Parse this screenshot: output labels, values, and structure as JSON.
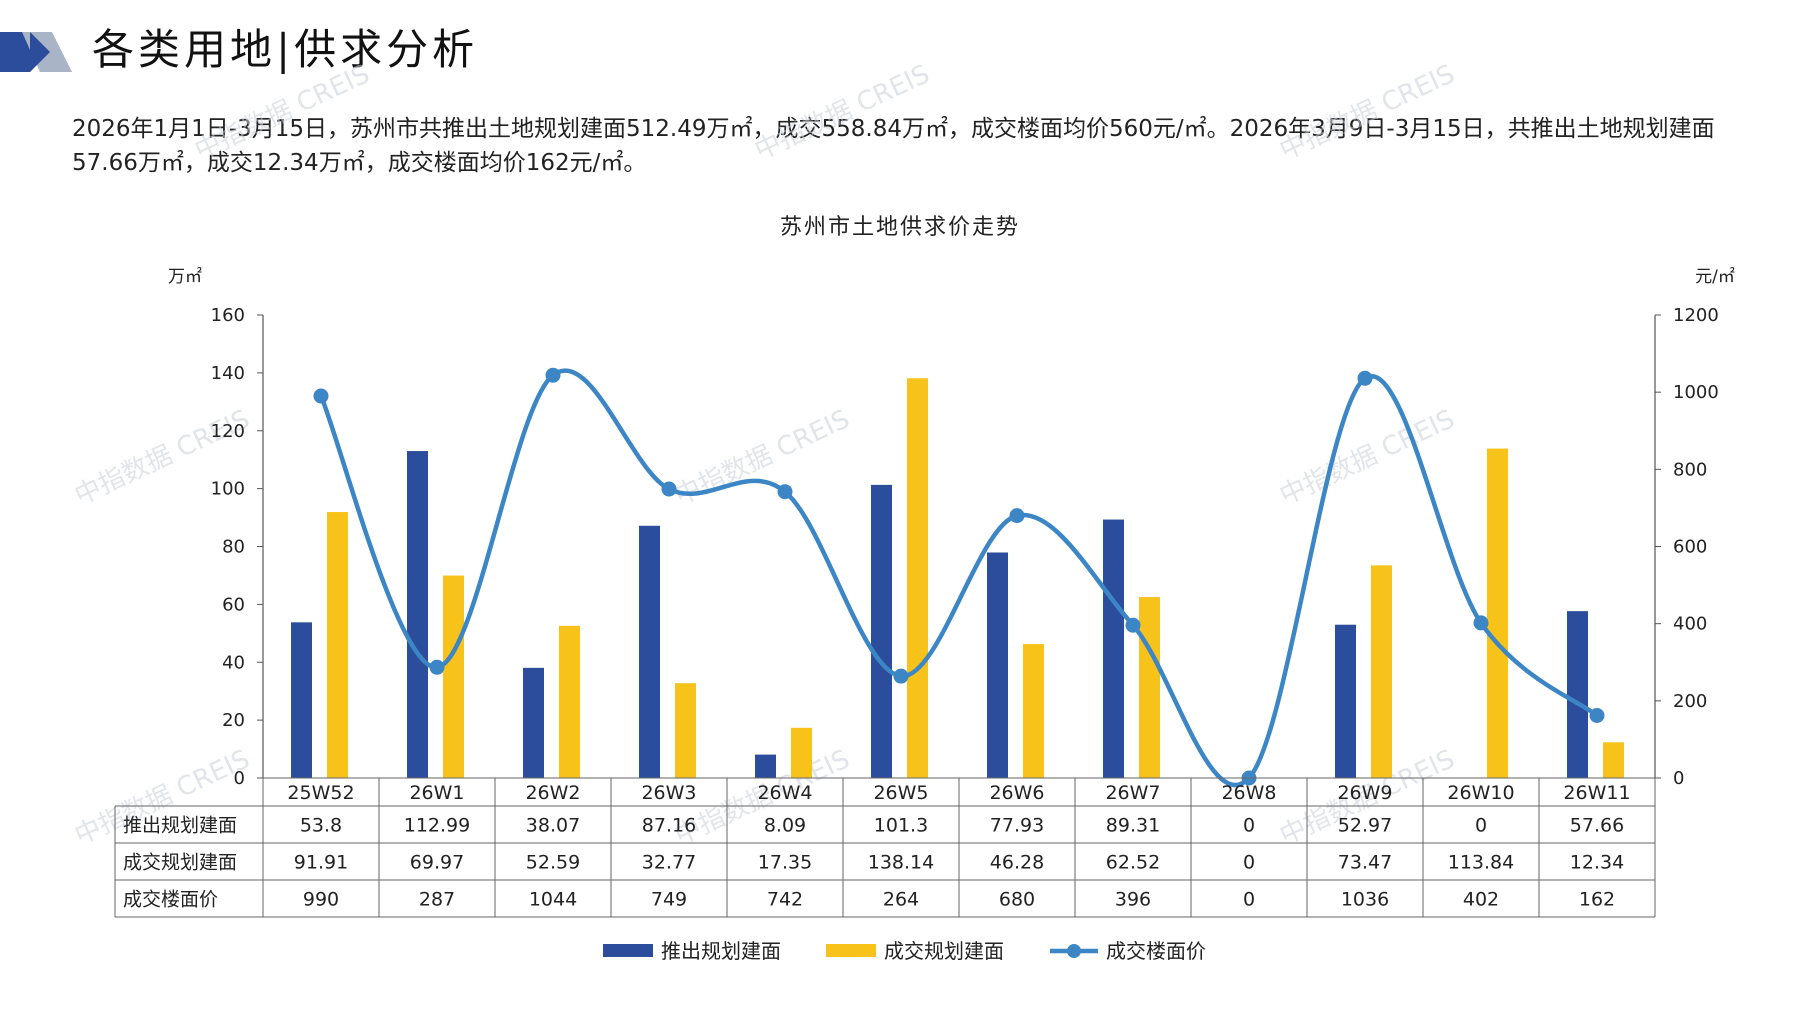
{
  "header": {
    "title": "各类用地|供求分析"
  },
  "summary": {
    "text": "2026年1月1日-3月15日，苏州市共推出土地规划建面512.49万㎡，成交558.84万㎡，成交楼面均价560元/㎡。2026年3月9日-3月15日，共推出土地规划建面57.66万㎡，成交12.34万㎡，成交楼面均价162元/㎡。"
  },
  "watermark": "中指数据 CREIS",
  "colors": {
    "supply": "#2b4d9b",
    "deal": "#f7c21a",
    "price": "#3d86c6",
    "logo_dark": "#2b4d9b",
    "logo_light": "#a9b4c6"
  },
  "chart_data": {
    "type": "bar",
    "title": "苏州市土地供求价走势",
    "categories": [
      "25W52",
      "26W1",
      "26W2",
      "26W3",
      "26W4",
      "26W5",
      "26W6",
      "26W7",
      "26W8",
      "26W9",
      "26W10",
      "26W11"
    ],
    "y_left": {
      "unit": "万㎡",
      "ylim": [
        0,
        160
      ],
      "ticks": [
        0,
        20,
        40,
        60,
        80,
        100,
        120,
        140,
        160
      ]
    },
    "y_right": {
      "unit": "元/㎡",
      "ylim": [
        0,
        1200
      ],
      "ticks": [
        0,
        200,
        400,
        600,
        800,
        1000,
        1200
      ]
    },
    "series": [
      {
        "name": "推出规划建面",
        "type": "bar",
        "axis": "left",
        "color": "#2b4d9b",
        "values": [
          53.8,
          112.99,
          38.07,
          87.16,
          8.09,
          101.3,
          77.93,
          89.31,
          0,
          52.97,
          0,
          57.66
        ],
        "labels": [
          "53.8",
          "112.99",
          "38.07",
          "87.16",
          "8.09",
          "101.3",
          "77.93",
          "89.31",
          "0",
          "52.97",
          "0",
          "57.66"
        ]
      },
      {
        "name": "成交规划建面",
        "type": "bar",
        "axis": "left",
        "color": "#f7c21a",
        "values": [
          91.91,
          69.97,
          52.59,
          32.77,
          17.35,
          138.14,
          46.28,
          62.52,
          0,
          73.47,
          113.84,
          12.34
        ],
        "labels": [
          "91.91",
          "69.97",
          "52.59",
          "32.77",
          "17.35",
          "138.14",
          "46.28",
          "62.52",
          "0",
          "73.47",
          "113.84",
          "12.34"
        ]
      },
      {
        "name": "成交楼面价",
        "type": "line",
        "axis": "right",
        "color": "#3d86c6",
        "values": [
          990,
          287,
          1044,
          749,
          742,
          264,
          680,
          396,
          0,
          1036,
          402,
          162
        ],
        "labels": [
          "990",
          "287",
          "1044",
          "749",
          "742",
          "264",
          "680",
          "396",
          "0",
          "1036",
          "402",
          "162"
        ]
      }
    ],
    "legend_position": "bottom",
    "grid": false
  }
}
